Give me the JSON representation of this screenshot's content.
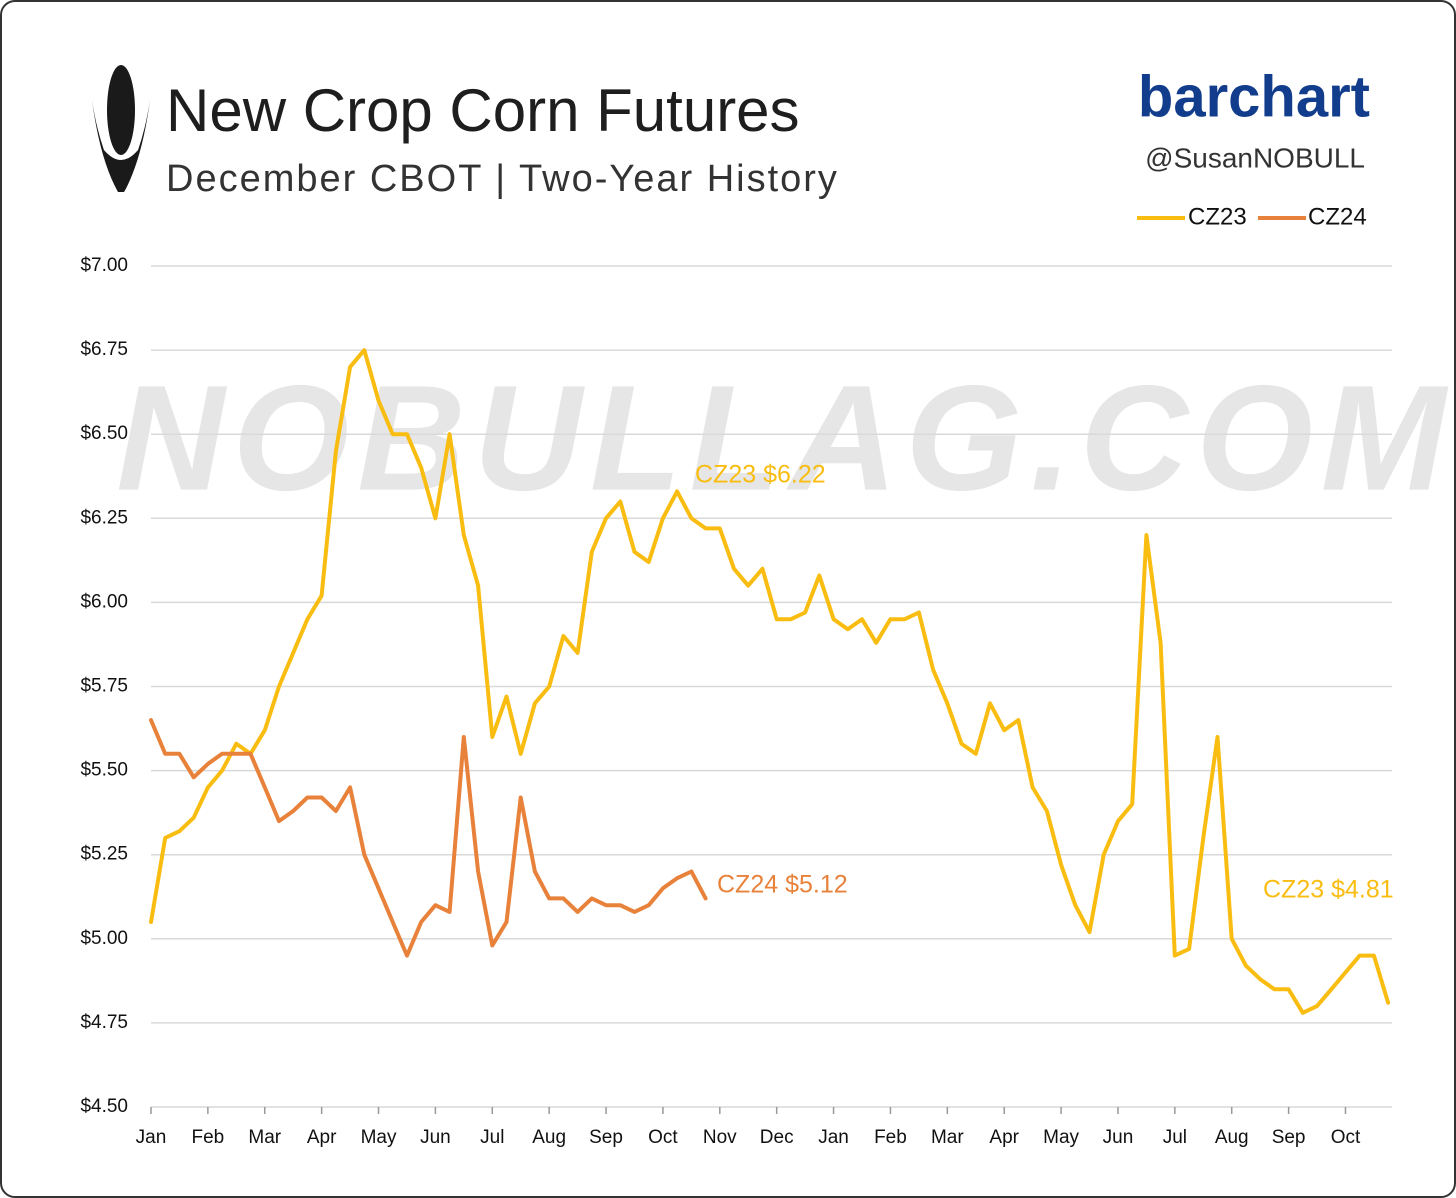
{
  "chart_data": {
    "type": "line",
    "title": "New Crop Corn Futures",
    "subtitle": "December CBOT | Two-Year History",
    "brand": "barchart",
    "handle": "@SusanNOBULL",
    "watermark": "NOBULLAG.COM",
    "categories": [
      "Jan",
      null,
      null,
      null,
      "Feb",
      null,
      null,
      null,
      "Mar",
      null,
      null,
      null,
      "Apr",
      null,
      null,
      null,
      "May",
      null,
      null,
      null,
      "Jun",
      null,
      null,
      null,
      "Jul",
      null,
      null,
      null,
      "Aug",
      null,
      null,
      null,
      "Sep",
      null,
      null,
      null,
      "Oct",
      null,
      null,
      null,
      "Nov",
      null,
      null,
      null,
      "Dec",
      null,
      null,
      null,
      "Jan",
      null,
      null,
      null,
      "Feb",
      null,
      null,
      null,
      "Mar",
      null,
      null,
      null,
      "Apr",
      null,
      null,
      null,
      "May",
      null,
      null,
      null,
      "Jun",
      null,
      null,
      null,
      "Jul",
      null,
      null,
      null,
      "Aug",
      null,
      null,
      null,
      "Sep",
      null,
      null,
      null,
      "Oct",
      null,
      null,
      null
    ],
    "series": [
      {
        "name": "CZ23",
        "color": "#f9bd12",
        "values": [
          5.05,
          5.3,
          5.32,
          5.36,
          5.45,
          5.5,
          5.58,
          5.55,
          5.62,
          5.75,
          5.85,
          5.95,
          6.02,
          6.45,
          6.7,
          6.75,
          6.6,
          6.5,
          6.5,
          6.4,
          6.25,
          6.5,
          6.2,
          6.05,
          5.6,
          5.72,
          5.55,
          5.7,
          5.75,
          5.9,
          5.85,
          6.15,
          6.25,
          6.3,
          6.15,
          6.12,
          6.25,
          6.33,
          6.25,
          6.22,
          6.22,
          6.1,
          6.05,
          6.1,
          5.95,
          5.95,
          5.97,
          6.08,
          5.95,
          5.92,
          5.95,
          5.88,
          5.95,
          5.95,
          5.97,
          5.8,
          5.7,
          5.58,
          5.55,
          5.7,
          5.62,
          5.65,
          5.45,
          5.38,
          5.22,
          5.1,
          5.02,
          5.25,
          5.35,
          5.4,
          6.2,
          5.88,
          4.95,
          4.97,
          5.3,
          5.6,
          5.0,
          4.92,
          4.88,
          4.85,
          4.85,
          4.78,
          4.8,
          4.85,
          4.9,
          4.95,
          4.95,
          4.81
        ]
      },
      {
        "name": "CZ24",
        "color": "#e8823b",
        "values": [
          5.65,
          5.55,
          5.55,
          5.48,
          5.52,
          5.55,
          5.55,
          5.55,
          5.45,
          5.35,
          5.38,
          5.42,
          5.42,
          5.38,
          5.45,
          5.25,
          5.15,
          5.05,
          4.95,
          5.05,
          5.1,
          5.08,
          5.6,
          5.2,
          4.98,
          5.05,
          5.42,
          5.2,
          5.12,
          5.12,
          5.08,
          5.12,
          5.1,
          5.1,
          5.08,
          5.1,
          5.15,
          5.18,
          5.2,
          5.12,
          null,
          null,
          null,
          null,
          null,
          null,
          null,
          null,
          null,
          null,
          null,
          null,
          null,
          null,
          null,
          null,
          null,
          null,
          null,
          null,
          null,
          null,
          null,
          null,
          null,
          null,
          null,
          null,
          null,
          null,
          null,
          null,
          null,
          null,
          null,
          null,
          null,
          null,
          null,
          null,
          null,
          null,
          null,
          null,
          null,
          null,
          null,
          null
        ]
      }
    ],
    "annotations": [
      {
        "text": "CZ23 $6.22",
        "color": "#f9bd12"
      },
      {
        "text": "CZ24 $5.12",
        "color": "#e8823b"
      },
      {
        "text": "CZ23 $4.81",
        "color": "#f9bd12"
      }
    ],
    "ylim": [
      4.5,
      7.0
    ],
    "yticks": [
      {
        "value": 4.5,
        "label": "$4.50"
      },
      {
        "value": 4.75,
        "label": "$4.75"
      },
      {
        "value": 5,
        "label": "$5.00"
      },
      {
        "value": 5.25,
        "label": "$5.25"
      },
      {
        "value": 5.5,
        "label": "$5.50"
      },
      {
        "value": 5.75,
        "label": "$5.75"
      },
      {
        "value": 6,
        "label": "$6.00"
      },
      {
        "value": 6.25,
        "label": "$6.25"
      },
      {
        "value": 6.5,
        "label": "$6.50"
      },
      {
        "value": 6.75,
        "label": "$6.75"
      },
      {
        "value": 7,
        "label": "$7.00"
      }
    ],
    "grid": true,
    "legend": "top-right"
  }
}
